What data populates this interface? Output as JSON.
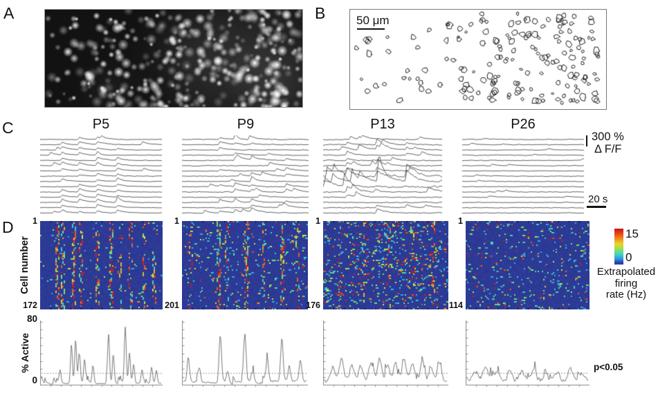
{
  "figure": {
    "panel_a": {
      "label": "A"
    },
    "panel_b": {
      "label": "B",
      "scale_bar": "50 μm"
    },
    "panel_c": {
      "label": "C",
      "titles": [
        "P5",
        "P9",
        "P13",
        "P26"
      ],
      "amp_scale": "300 %",
      "amp_unit": "Δ F/F",
      "time_scale": "20 s"
    },
    "panel_d": {
      "label": "D",
      "ylabel": "Cell number",
      "top_cell": "1",
      "cell_counts": [
        "172",
        "201",
        "176",
        "114"
      ],
      "colorbar_max": "15",
      "colorbar_min": "0",
      "colorbar_label_lines": [
        "Extrapolated",
        "firing",
        "rate (Hz)"
      ]
    },
    "panel_e": {
      "ylabel": "% Active",
      "ymax": "80",
      "ymin": "0",
      "threshold_label": "p<0.05"
    }
  },
  "chart_data": {
    "type": "multi-panel-figure",
    "panel_a": {
      "type": "image",
      "description": "grayscale fluorescence image of labeled cells, brighter cluster right of center"
    },
    "panel_b": {
      "type": "diagram",
      "description": "outlines of ~160 detected cells",
      "scale_bar_um": 50
    },
    "panel_c": {
      "type": "line-traces",
      "ages": [
        "P5",
        "P9",
        "P13",
        "P26"
      ],
      "traces_per_column": 15,
      "amp_scale_percent": 300,
      "time_scale_s": 20,
      "sync_fractions": [
        [
          0.18,
          0.32,
          0.47,
          0.63
        ],
        [
          0.3,
          0.42,
          0.55,
          0.82
        ],
        [
          0.2,
          0.45,
          0.7
        ],
        []
      ],
      "participation": [
        0.85,
        0.5,
        0.4,
        0
      ],
      "noise": [
        0.5,
        0.65,
        0.8,
        0.55
      ],
      "extra_events": [
        1,
        2,
        6,
        2
      ],
      "amp_range": [
        [
          2.2,
          5
        ],
        [
          2.2,
          6
        ],
        [
          2.5,
          8
        ],
        [
          1.2,
          2.6
        ]
      ]
    },
    "panel_d": {
      "type": "heatmap",
      "cell_counts": [
        172,
        201,
        176,
        114
      ],
      "value_range_hz": [
        0,
        15
      ],
      "heat_bg": "#2c3a96",
      "palette": [
        "#35aadc",
        "#3cd0cc",
        "#7ee060",
        "#d8e238",
        "#f0b02c",
        "#ea5c20",
        "#cf1f1a"
      ],
      "scatter_density": [
        0.015,
        0.045,
        0.1,
        0.065
      ],
      "sync_columns": [
        [
          [
            0.14,
            0.75
          ],
          [
            0.18,
            0.5
          ],
          [
            0.27,
            0.7
          ],
          [
            0.33,
            0.35
          ],
          [
            0.46,
            0.55
          ],
          [
            0.57,
            0.75
          ],
          [
            0.64,
            0.3
          ],
          [
            0.73,
            0.45
          ],
          [
            0.84,
            0.4
          ],
          [
            0.92,
            0.35
          ]
        ],
        [
          [
            0.07,
            0.35
          ],
          [
            0.29,
            0.55
          ],
          [
            0.35,
            0.35
          ],
          [
            0.5,
            0.65
          ],
          [
            0.64,
            0.3
          ],
          [
            0.79,
            0.55
          ],
          [
            0.91,
            0.3
          ]
        ],
        [
          [
            0.13,
            0.22
          ],
          [
            0.32,
            0.18
          ],
          [
            0.52,
            0.2
          ],
          [
            0.7,
            0.25
          ],
          [
            0.87,
            0.2
          ]
        ],
        []
      ]
    },
    "panel_e": {
      "type": "line",
      "ylim": [
        0,
        80
      ],
      "threshold_percent": 15,
      "base_level": [
        2.5,
        6,
        9,
        10
      ],
      "burst_sigma": [
        0.008,
        0.01,
        0.016,
        0.018
      ],
      "bursts": [
        [
          [
            0.155,
            16
          ],
          [
            0.25,
            50
          ],
          [
            0.285,
            56
          ],
          [
            0.315,
            40
          ],
          [
            0.36,
            31
          ],
          [
            0.43,
            23
          ],
          [
            0.56,
            62
          ],
          [
            0.6,
            31
          ],
          [
            0.7,
            72
          ],
          [
            0.735,
            40
          ],
          [
            0.77,
            24
          ],
          [
            0.84,
            18
          ],
          [
            0.92,
            20
          ],
          [
            0.96,
            16
          ]
        ],
        [
          [
            0.04,
            30
          ],
          [
            0.13,
            18
          ],
          [
            0.3,
            60
          ],
          [
            0.36,
            14
          ],
          [
            0.5,
            56
          ],
          [
            0.56,
            13
          ],
          [
            0.68,
            26
          ],
          [
            0.8,
            55
          ],
          [
            0.86,
            20
          ],
          [
            0.95,
            24
          ]
        ],
        [
          [
            0.07,
            18
          ],
          [
            0.14,
            26
          ],
          [
            0.22,
            20
          ],
          [
            0.3,
            16
          ],
          [
            0.38,
            22
          ],
          [
            0.45,
            27
          ],
          [
            0.52,
            18
          ],
          [
            0.58,
            21
          ],
          [
            0.65,
            24
          ],
          [
            0.72,
            20
          ],
          [
            0.8,
            26
          ],
          [
            0.87,
            18
          ],
          [
            0.94,
            22
          ]
        ],
        [
          [
            0.06,
            12
          ],
          [
            0.15,
            16
          ],
          [
            0.25,
            10
          ],
          [
            0.35,
            12
          ],
          [
            0.45,
            9
          ],
          [
            0.55,
            11
          ],
          [
            0.65,
            8
          ],
          [
            0.75,
            10
          ],
          [
            0.85,
            14
          ],
          [
            0.93,
            11
          ]
        ]
      ]
    }
  }
}
